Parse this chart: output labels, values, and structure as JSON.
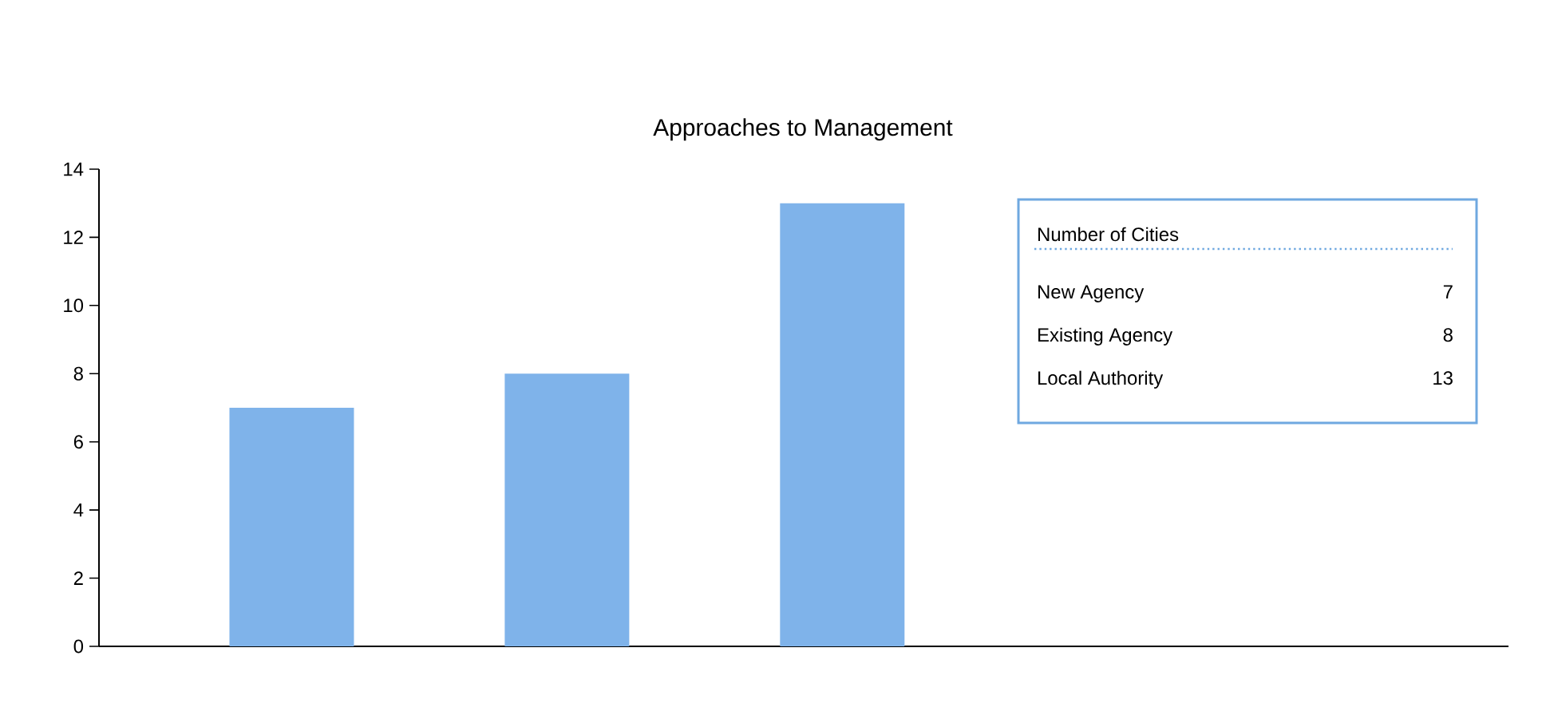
{
  "chart_data": [
    {
      "type": "bar",
      "title": "Approaches to Management",
      "categories": [
        null,
        null,
        null
      ],
      "values": [
        7,
        8,
        13
      ],
      "color": "#7fb3ea",
      "ylim": [
        0,
        14
      ],
      "yticks": [
        0,
        2,
        4,
        6,
        8,
        10,
        12,
        14
      ]
    },
    {
      "type": "other",
      "title": "Number of Cities",
      "categories": [
        "New Agency",
        "Existing Agency",
        "Local Authority"
      ],
      "values": [
        7,
        8,
        13
      ],
      "color": "#6fa8e0",
      "data_labels": true
    }
  ]
}
